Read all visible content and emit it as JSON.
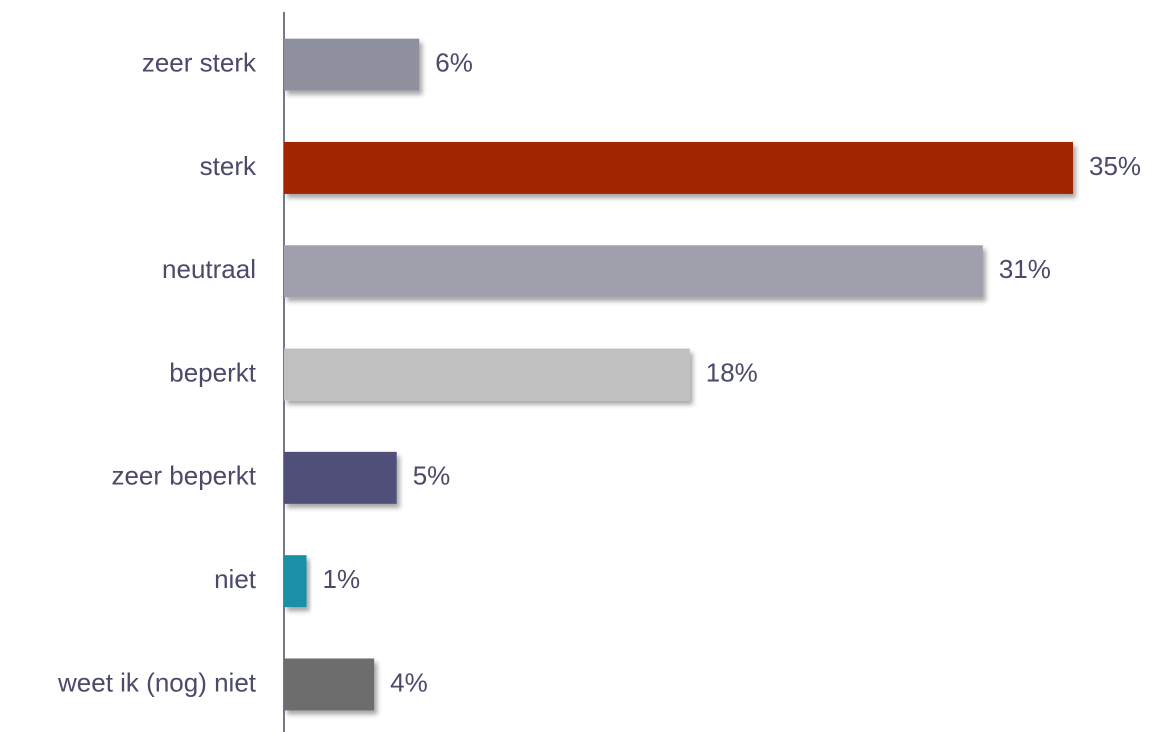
{
  "chart_data": {
    "type": "hbar",
    "categories": [
      "zeer sterk",
      "sterk",
      "neutraal",
      "beperkt",
      "zeer beperkt",
      "niet",
      "weet ik (nog) niet"
    ],
    "values": [
      6,
      35,
      31,
      18,
      5,
      1,
      4
    ],
    "value_labels": [
      "6%",
      "35%",
      "31%",
      "18%",
      "5%",
      "1%",
      "4%"
    ],
    "colors": [
      "#8e909e",
      "#a02800",
      "#9fa0ac",
      "#c0c0c0",
      "#4f5079",
      "#1e8fa8",
      "#6d6d6d"
    ]
  }
}
